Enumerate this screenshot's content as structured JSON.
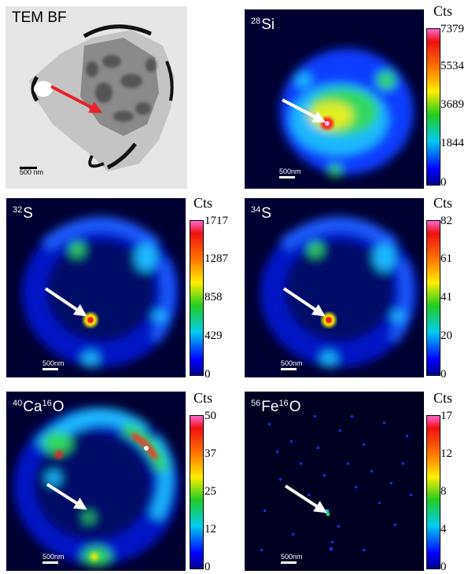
{
  "panels": {
    "tem": {
      "title": "TEM BF",
      "scale": "500 nm"
    },
    "si": {
      "mass": "28",
      "element": "Si",
      "scale": "500nm"
    },
    "s32": {
      "mass": "32",
      "element": "S",
      "scale": "500nm"
    },
    "s34": {
      "mass": "34",
      "element": "S",
      "scale": "500nm"
    },
    "cao": {
      "mass1": "40",
      "element1": "Ca",
      "mass2": "16",
      "element2": "O",
      "scale": "500nm"
    },
    "feo": {
      "mass1": "56",
      "element1": "Fe",
      "mass2": "16",
      "element2": "O",
      "scale": "500nm"
    }
  },
  "colorbars": {
    "si": {
      "unit": "Cts",
      "ticks": [
        "7379",
        "5534",
        "3689",
        "1844",
        "0"
      ]
    },
    "s32": {
      "unit": "Cts",
      "ticks": [
        "1717",
        "1287",
        "858",
        "429",
        "0"
      ]
    },
    "s34": {
      "unit": "Cts",
      "ticks": [
        "82",
        "61",
        "41",
        "20",
        "0"
      ]
    },
    "cao": {
      "unit": "Cts",
      "ticks": [
        "50",
        "37",
        "25",
        "12",
        "0"
      ]
    },
    "feo": {
      "unit": "Cts",
      "ticks": [
        "17",
        "12",
        "8",
        "4",
        "0"
      ]
    }
  },
  "colors": {
    "arrow_red": "#e8202a",
    "arrow_white": "#ffffff",
    "map_bg": "#000033"
  }
}
